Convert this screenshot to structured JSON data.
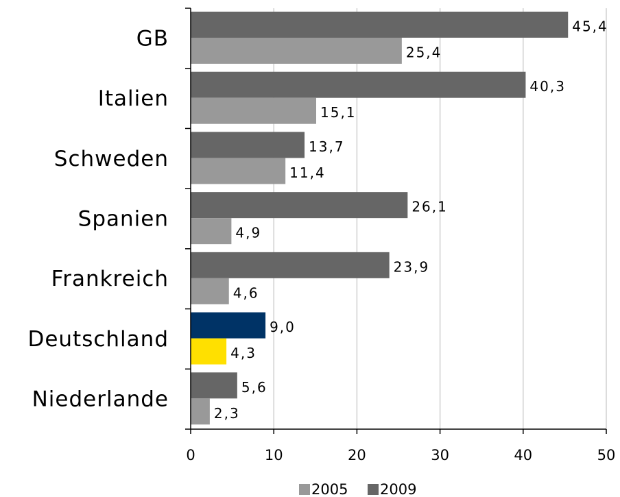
{
  "chart_data": {
    "type": "hbar",
    "categories": [
      "GB",
      "Italien",
      "Schweden",
      "Spanien",
      "Frankreich",
      "Deutschland",
      "Niederlande"
    ],
    "series": [
      {
        "name": "2005",
        "color": "#999999",
        "colors": [
          "#999999",
          "#999999",
          "#999999",
          "#999999",
          "#999999",
          "#ffe000",
          "#999999"
        ],
        "values": [
          25.4,
          15.1,
          11.4,
          4.9,
          4.6,
          4.3,
          2.3
        ],
        "value_labels": [
          "25,4",
          "15,1",
          "11,4",
          "4,9",
          "4,6",
          "4,3",
          "2,3"
        ]
      },
      {
        "name": "2009",
        "color": "#666666",
        "colors": [
          "#666666",
          "#666666",
          "#666666",
          "#666666",
          "#666666",
          "#003366",
          "#666666"
        ],
        "values": [
          45.4,
          40.3,
          13.7,
          26.1,
          23.9,
          9.0,
          5.6
        ],
        "value_labels": [
          "45,4",
          "40,3",
          "13,7",
          "26,1",
          "23,9",
          "9,0",
          "5,6"
        ]
      }
    ],
    "xlim": [
      0,
      50
    ],
    "xticks": [
      0,
      10,
      20,
      30,
      40,
      50
    ],
    "grid": true,
    "legend": "bottom"
  }
}
